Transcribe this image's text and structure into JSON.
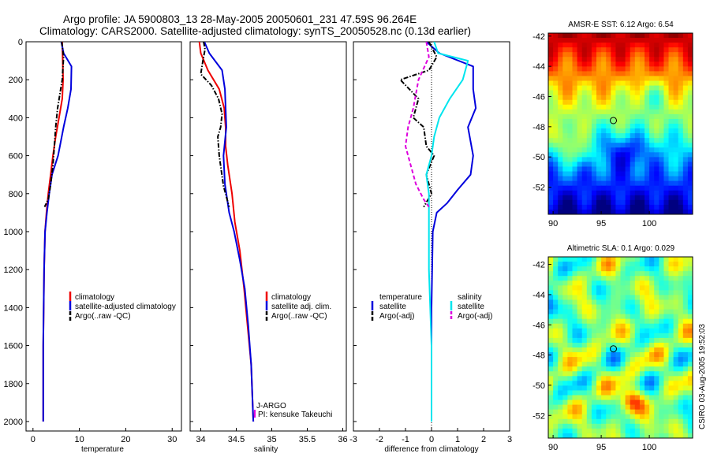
{
  "header": {
    "line1": "Argo profile: JA 5900803_13 28-May-2005 20050601_231 47.59S 96.264E",
    "line2": "Climatology: CARS2000. Satellite-adjusted climatology: synTS_20050528.nc (0.13d earlier)"
  },
  "colors": {
    "climatology": "#ee0000",
    "satellite": "#0000dd",
    "argo": "#000000",
    "satellite_salinity": "#00e5ee",
    "argo_salinity": "#dd00dd",
    "zero_line": "#000000"
  },
  "chart_data": [
    {
      "id": "temperature",
      "type": "line",
      "xlabel": "temperature",
      "xlim": [
        -1.5,
        32
      ],
      "ylim": [
        2050,
        0
      ],
      "y_inverted": true,
      "xticks": [
        0,
        10,
        20,
        30
      ],
      "yticks": [
        0,
        200,
        400,
        600,
        800,
        1000,
        1200,
        1400,
        1600,
        1800,
        2000
      ],
      "legend": [
        "climatology",
        "satellite-adjusted climatology",
        "Argo(..raw -QC)"
      ],
      "legend_position": "center-right",
      "series": [
        {
          "name": "climatology",
          "color": "#ee0000",
          "style": "solid",
          "x": [
            6.3,
            6.4,
            6.5,
            6.3,
            5.6,
            4.9,
            4.3,
            3.8,
            3.3,
            2.9,
            2.6,
            2.4,
            2.2,
            2.2
          ],
          "y": [
            0,
            100,
            200,
            300,
            400,
            500,
            600,
            700,
            800,
            900,
            1000,
            1200,
            1600,
            2000
          ]
        },
        {
          "name": "satellite-adjusted climatology",
          "color": "#0000dd",
          "style": "solid",
          "x": [
            6.1,
            6.6,
            8.3,
            8.2,
            7.5,
            6.6,
            5.4,
            4.1,
            3.5,
            3.0,
            2.6,
            2.4,
            2.2,
            2.2
          ],
          "y": [
            0,
            60,
            130,
            250,
            350,
            450,
            600,
            700,
            800,
            900,
            1000,
            1200,
            1600,
            2000
          ]
        },
        {
          "name": "Argo(..raw -QC)",
          "color": "#000000",
          "style": "dashdot",
          "x": [
            6.2,
            6.6,
            6.3,
            5.3,
            4.9,
            4.6,
            4.3,
            3.8,
            3.3,
            2.5
          ],
          "y": [
            0,
            80,
            200,
            350,
            450,
            550,
            650,
            750,
            830,
            870
          ]
        }
      ]
    },
    {
      "id": "salinity",
      "type": "line",
      "xlabel": "salinity",
      "xlim": [
        33.85,
        36.05
      ],
      "ylim": [
        2050,
        0
      ],
      "y_inverted": true,
      "xticks": [
        34,
        34.5,
        35,
        35.5,
        36
      ],
      "legend": [
        "climatology",
        "satellite adj. clim.",
        "Argo(..raw -QC)"
      ],
      "legend_position": "center-right",
      "annotations": [
        "J-ARGO",
        "PI: kensuke Takeuchi"
      ],
      "series": [
        {
          "name": "climatology",
          "color": "#ee0000",
          "style": "solid",
          "x": [
            33.98,
            34.0,
            34.1,
            34.26,
            34.33,
            34.35,
            34.35,
            34.38,
            34.44,
            34.48,
            34.55,
            34.61,
            34.66,
            34.71,
            34.73,
            34.74
          ],
          "y": [
            0,
            60,
            150,
            250,
            350,
            450,
            550,
            650,
            800,
            950,
            1100,
            1300,
            1500,
            1700,
            1900,
            2000
          ]
        },
        {
          "name": "satellite adj. clim.",
          "color": "#0000dd",
          "style": "solid",
          "x": [
            34.05,
            34.12,
            34.3,
            34.34,
            34.35,
            34.36,
            34.32,
            34.34,
            34.4,
            34.47,
            34.55,
            34.62,
            34.67,
            34.71,
            34.73,
            34.74
          ],
          "y": [
            0,
            60,
            150,
            250,
            350,
            450,
            600,
            750,
            900,
            1000,
            1150,
            1300,
            1500,
            1700,
            1900,
            2000
          ]
        },
        {
          "name": "Argo(..raw -QC)",
          "color": "#000000",
          "style": "dashdot",
          "x": [
            34.04,
            34.06,
            34.03,
            34.0,
            34.15,
            34.25,
            34.3,
            34.28,
            34.24,
            34.26,
            34.32,
            34.4
          ],
          "y": [
            0,
            40,
            100,
            170,
            230,
            300,
            380,
            450,
            500,
            600,
            760,
            870
          ]
        }
      ]
    },
    {
      "id": "difference",
      "type": "line",
      "xlabel": "difference from climatology",
      "xlim": [
        -3,
        3
      ],
      "ylim": [
        2050,
        0
      ],
      "y_inverted": true,
      "xticks": [
        -3,
        -2,
        -1,
        0,
        1,
        2,
        3
      ],
      "legend": [
        "temperature",
        "satellite",
        "Argo(-adj)",
        "salinity",
        "satellite",
        "Argo(-adj)"
      ],
      "legend_position": "center",
      "series": [
        {
          "name": "satellite",
          "color": "#0000dd",
          "style": "solid",
          "x": [
            -0.2,
            0.3,
            1.6,
            1.6,
            1.7,
            1.4,
            1.6,
            1.5,
            1.0,
            0.6,
            0.2,
            0.05,
            0.0,
            0.0
          ],
          "y": [
            0,
            60,
            130,
            250,
            350,
            450,
            600,
            700,
            780,
            850,
            900,
            1000,
            1400,
            2000
          ]
        },
        {
          "name": "Argo(-adj)",
          "color": "#000000",
          "style": "dashdot",
          "x": [
            -0.1,
            0.2,
            -0.1,
            -1.2,
            -0.5,
            -0.7,
            -0.3,
            -0.2,
            0.1,
            -0.2,
            0.0,
            -0.3
          ],
          "y": [
            0,
            80,
            150,
            200,
            300,
            400,
            450,
            550,
            600,
            700,
            800,
            870
          ]
        },
        {
          "name": "salinity satellite",
          "color": "#00e5ee",
          "style": "solid",
          "x": [
            0.1,
            0.25,
            1.4,
            1.2,
            0.7,
            0.3,
            0.1,
            0.0,
            -0.2,
            -0.1,
            -0.1,
            -0.1,
            0.0,
            0.0
          ],
          "y": [
            0,
            60,
            100,
            200,
            300,
            400,
            500,
            600,
            700,
            800,
            1000,
            1200,
            1600,
            2000
          ]
        },
        {
          "name": "salinity Argo(-adj)",
          "color": "#dd00dd",
          "style": "dashed",
          "x": [
            -0.2,
            -0.1,
            -0.5,
            -0.7,
            -0.9,
            -1.0,
            -0.8,
            -0.6,
            -0.3,
            -0.1
          ],
          "y": [
            0,
            80,
            200,
            350,
            450,
            550,
            650,
            750,
            830,
            870
          ]
        }
      ]
    },
    {
      "id": "sst_map",
      "type": "heatmap",
      "title": "AMSR-E SST: 6.12 Argo: 6.54",
      "xlim": [
        89.5,
        104.5
      ],
      "ylim": [
        -53.8,
        -41.8
      ],
      "xticks": [
        90,
        95,
        100
      ],
      "yticks": [
        -42,
        -44,
        -46,
        -48,
        -50,
        -52
      ],
      "marker": {
        "lon": 96.264,
        "lat": -47.59
      },
      "colormap": "jet",
      "value_range": [
        4,
        11
      ]
    },
    {
      "id": "sla_map",
      "type": "heatmap",
      "title": "Altimetric SLA: 0.1 Argo: 0.029",
      "xlim": [
        89.5,
        104.5
      ],
      "ylim": [
        -53.5,
        -41.5
      ],
      "xticks": [
        90,
        95,
        100
      ],
      "yticks": [
        -42,
        -44,
        -46,
        -48,
        -50,
        -52
      ],
      "marker": {
        "lon": 96.264,
        "lat": -47.59
      },
      "colormap": "jet",
      "value_range": [
        -0.4,
        0.4
      ]
    }
  ],
  "credit": "CSIRO 03-Aug-2005 19:52:03"
}
